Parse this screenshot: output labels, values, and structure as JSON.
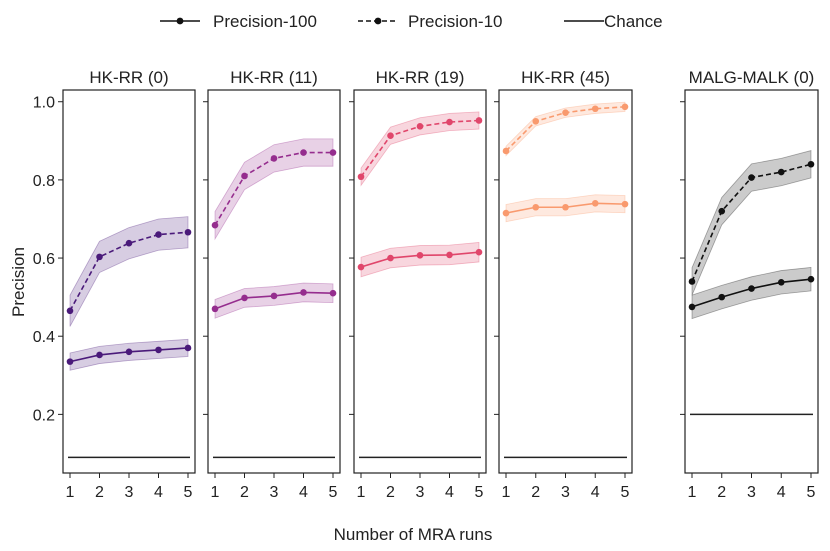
{
  "chart_data": {
    "type": "line",
    "x": [
      1,
      2,
      3,
      4,
      5
    ],
    "xticks": [
      "1",
      "2",
      "3",
      "4",
      "5"
    ],
    "ylim": [
      0.05,
      1.03
    ],
    "yticks": [
      0.2,
      0.4,
      0.6,
      0.8,
      1.0
    ],
    "ytick_labels": [
      "0.2",
      "0.4",
      "0.6",
      "0.8",
      "1.0"
    ],
    "xlabel": "Number of MRA runs",
    "ylabel": "Precision",
    "legend": [
      {
        "label": "Precision-100",
        "style": "solid-marker"
      },
      {
        "label": "Precision-10",
        "style": "dashed-marker"
      },
      {
        "label": "Chance",
        "style": "solid"
      }
    ],
    "panels": [
      {
        "title": "HK-RR (0)",
        "color": "#4a1a7a",
        "p100": [
          0.335,
          0.352,
          0.36,
          0.365,
          0.37
        ],
        "p100_band": 0.022,
        "p10": [
          0.465,
          0.603,
          0.638,
          0.66,
          0.666
        ],
        "p10_band": 0.04,
        "chance": 0.09
      },
      {
        "title": "HK-RR (11)",
        "color": "#952d8e",
        "p100": [
          0.47,
          0.498,
          0.503,
          0.512,
          0.51
        ],
        "p100_band": 0.024,
        "p10": [
          0.684,
          0.81,
          0.855,
          0.87,
          0.87
        ],
        "p10_band": 0.035,
        "chance": 0.09
      },
      {
        "title": "HK-RR (19)",
        "color": "#e0466b",
        "p100": [
          0.577,
          0.6,
          0.607,
          0.608,
          0.615
        ],
        "p100_band": 0.025,
        "p10": [
          0.808,
          0.913,
          0.937,
          0.948,
          0.952
        ],
        "p10_band": 0.022,
        "chance": 0.09
      },
      {
        "title": "HK-RR (45)",
        "color": "#f99a6e",
        "p100": [
          0.715,
          0.73,
          0.73,
          0.74,
          0.738
        ],
        "p100_band": 0.022,
        "p10": [
          0.874,
          0.95,
          0.972,
          0.982,
          0.987
        ],
        "p10_band": 0.012,
        "chance": 0.09
      },
      {
        "title": "MALG-MALK (0)",
        "color": "#111111",
        "p100": [
          0.475,
          0.5,
          0.522,
          0.538,
          0.546
        ],
        "p100_band": 0.03,
        "p10": [
          0.54,
          0.72,
          0.806,
          0.82,
          0.84
        ],
        "p10_band": 0.035,
        "chance": 0.2
      }
    ]
  }
}
